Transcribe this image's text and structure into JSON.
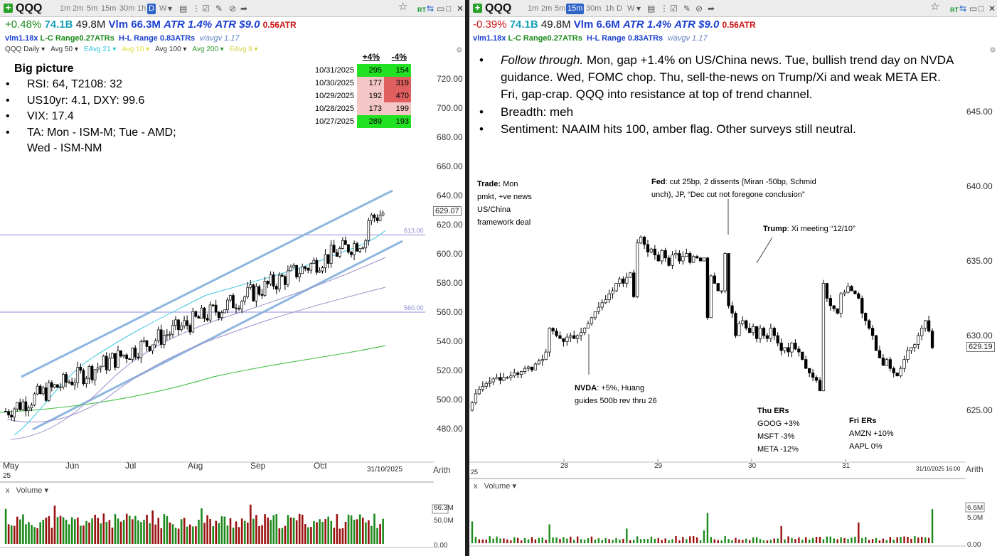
{
  "left": {
    "symbol": "QQQ",
    "timeframes": [
      "1m",
      "2m",
      "5m",
      "15m",
      "30m",
      "1h",
      "D",
      "W"
    ],
    "active_tf": "D",
    "tb_extra": "▾",
    "change": "+0.48%",
    "dollar_vol": "74.1B",
    "vol": "49.8M",
    "vlm": "Vlm 66.3M",
    "atr_pct": "ATR 1.4%",
    "atr_dollar": "ATR $9.0",
    "atr_ratio": "0.56ATR",
    "row2": {
      "vlm": "vlm1.18x",
      "lc": "L-C Range0.27ATRs",
      "hl": "H-L Range 0.83ATRs",
      "avgv": "v/avgv 1.17"
    },
    "legend": [
      {
        "label": "QQQ Daily",
        "color": "#333333"
      },
      {
        "label": "Avg 50",
        "color": "#333333"
      },
      {
        "label": "EAvg 21",
        "color": "#33c9e0"
      },
      {
        "label": "Avg 10",
        "color": "#e0e040"
      },
      {
        "label": "Avg 100",
        "color": "#333333"
      },
      {
        "label": "Avg 200",
        "color": "#2e9a2e"
      },
      {
        "label": "EAvg 8",
        "color": "#d9d040"
      }
    ],
    "big_picture_title": "Big picture",
    "bullets": [
      "RSI: 64, T2108: 32",
      "US10yr: 4.1, DXY: 99.6",
      "VIX: 17.4",
      "TA: Mon - ISM-M; Tue - AMD;",
      "Wed - ISM-NM"
    ],
    "breadth_table": {
      "headers": [
        "+4%",
        "-4%"
      ],
      "rows": [
        {
          "date": "10/31/2025",
          "up": "295",
          "down": "154",
          "up_color": "#22e022",
          "down_color": "#22e022"
        },
        {
          "date": "10/30/2025",
          "up": "177",
          "down": "319",
          "up_color": "#f4c6c6",
          "down_color": "#e06060"
        },
        {
          "date": "10/29/2025",
          "up": "192",
          "down": "470",
          "up_color": "#f4c6c6",
          "down_color": "#e06060"
        },
        {
          "date": "10/28/2025",
          "up": "173",
          "down": "199",
          "up_color": "#f4c6c6",
          "down_color": "#f4c6c6"
        },
        {
          "date": "10/27/2025",
          "up": "289",
          "down": "193",
          "up_color": "#22e022",
          "down_color": "#22e022"
        }
      ]
    },
    "price_ticks": [
      "720.00",
      "700.00",
      "680.00",
      "660.00",
      "640.00",
      "620.00",
      "600.00",
      "580.00",
      "560.00",
      "540.00",
      "520.00",
      "500.00",
      "480.00"
    ],
    "current_price": "629.07",
    "hline_labels": [
      "613.00",
      "560.00"
    ],
    "months": [
      "May",
      "Jun",
      "Jul",
      "Aug",
      "Sep",
      "Oct"
    ],
    "date_stamp": "31/10/2025",
    "date_small": "25",
    "scale": "Arith",
    "volume_label": "Volume",
    "vol_ticks": [
      "66.3M",
      "50.0M",
      "0.00"
    ]
  },
  "right": {
    "symbol": "QQQ",
    "timeframes": [
      "1m",
      "2m",
      "5m",
      "15m",
      "30m",
      "1h",
      "D",
      "W"
    ],
    "active_tf": "15m",
    "change": "-0.39%",
    "dollar_vol": "74.1B",
    "vol": "49.8M",
    "vlm": "Vlm 6.6M",
    "atr_pct": "ATR 1.4%",
    "atr_dollar": "ATR $9.0",
    "atr_ratio": "0.56ATR",
    "row2": {
      "vlm": "vlm1.18x",
      "lc": "L-C Range0.27ATRs",
      "hl": "H-L Range 0.83ATRs",
      "avgv": "v/avgv 1.17"
    },
    "bullets": [
      {
        "em": "Follow through.",
        "text": " Mon, gap +1.4% on US/China news.  Tue, bullish trend day on NVDA guidance.  Wed, FOMC chop.  Thu, sell-the-news on Trump/Xi and weak META ER.  Fri, gap-crap.  QQQ into resistance at top of trend channel."
      },
      {
        "em": "",
        "text": "Breadth: meh"
      },
      {
        "em": "",
        "text": "Sentiment: NAAIM hits 100, amber flag.  Other surveys still neutral."
      }
    ],
    "annotations": {
      "trade": {
        "b": "Trade:",
        "t1": " Mon",
        "t2": "pmkt, +ve news",
        "t3": "US/China",
        "t4": "framework deal"
      },
      "fed": {
        "b": "Fed",
        "t1": ": cut 25bp, 2 dissents (Miran -50bp, Schmid",
        "t2": "unch), JP, “Dec cut not foregone conclusion”"
      },
      "trump": {
        "b": "Trump",
        "t1": ": Xi meeting “12/10”"
      },
      "nvda": {
        "b": "NVDA",
        "t1": ": +5%, Huang",
        "t2": "guides 500b rev thru 26"
      },
      "thu": {
        "b": "Thu ERs",
        "l1": "GOOG +3%",
        "l2": "MSFT -3%",
        "l3": "META -12%"
      },
      "fri": {
        "b": "Fri ERs",
        "l1": "AMZN +10%",
        "l2": "AAPL 0%"
      }
    },
    "price_ticks": [
      "645.00",
      "640.00",
      "635.00",
      "630.00",
      "625.00"
    ],
    "current_price": "629.19",
    "days": [
      "28",
      "29",
      "30",
      "31"
    ],
    "date_stamp": "31/10/2025 16:00",
    "date_small": "25",
    "scale": "Arith",
    "volume_label": "Volume",
    "vol_ticks": [
      "6.6M",
      "5.0M",
      "0.00"
    ]
  },
  "colors": {
    "green": "#1a8a1a",
    "cyan": "#1aa0b8",
    "blue": "#1a3fd0",
    "red": "#cc1111",
    "trend": "#8fb6e0"
  }
}
